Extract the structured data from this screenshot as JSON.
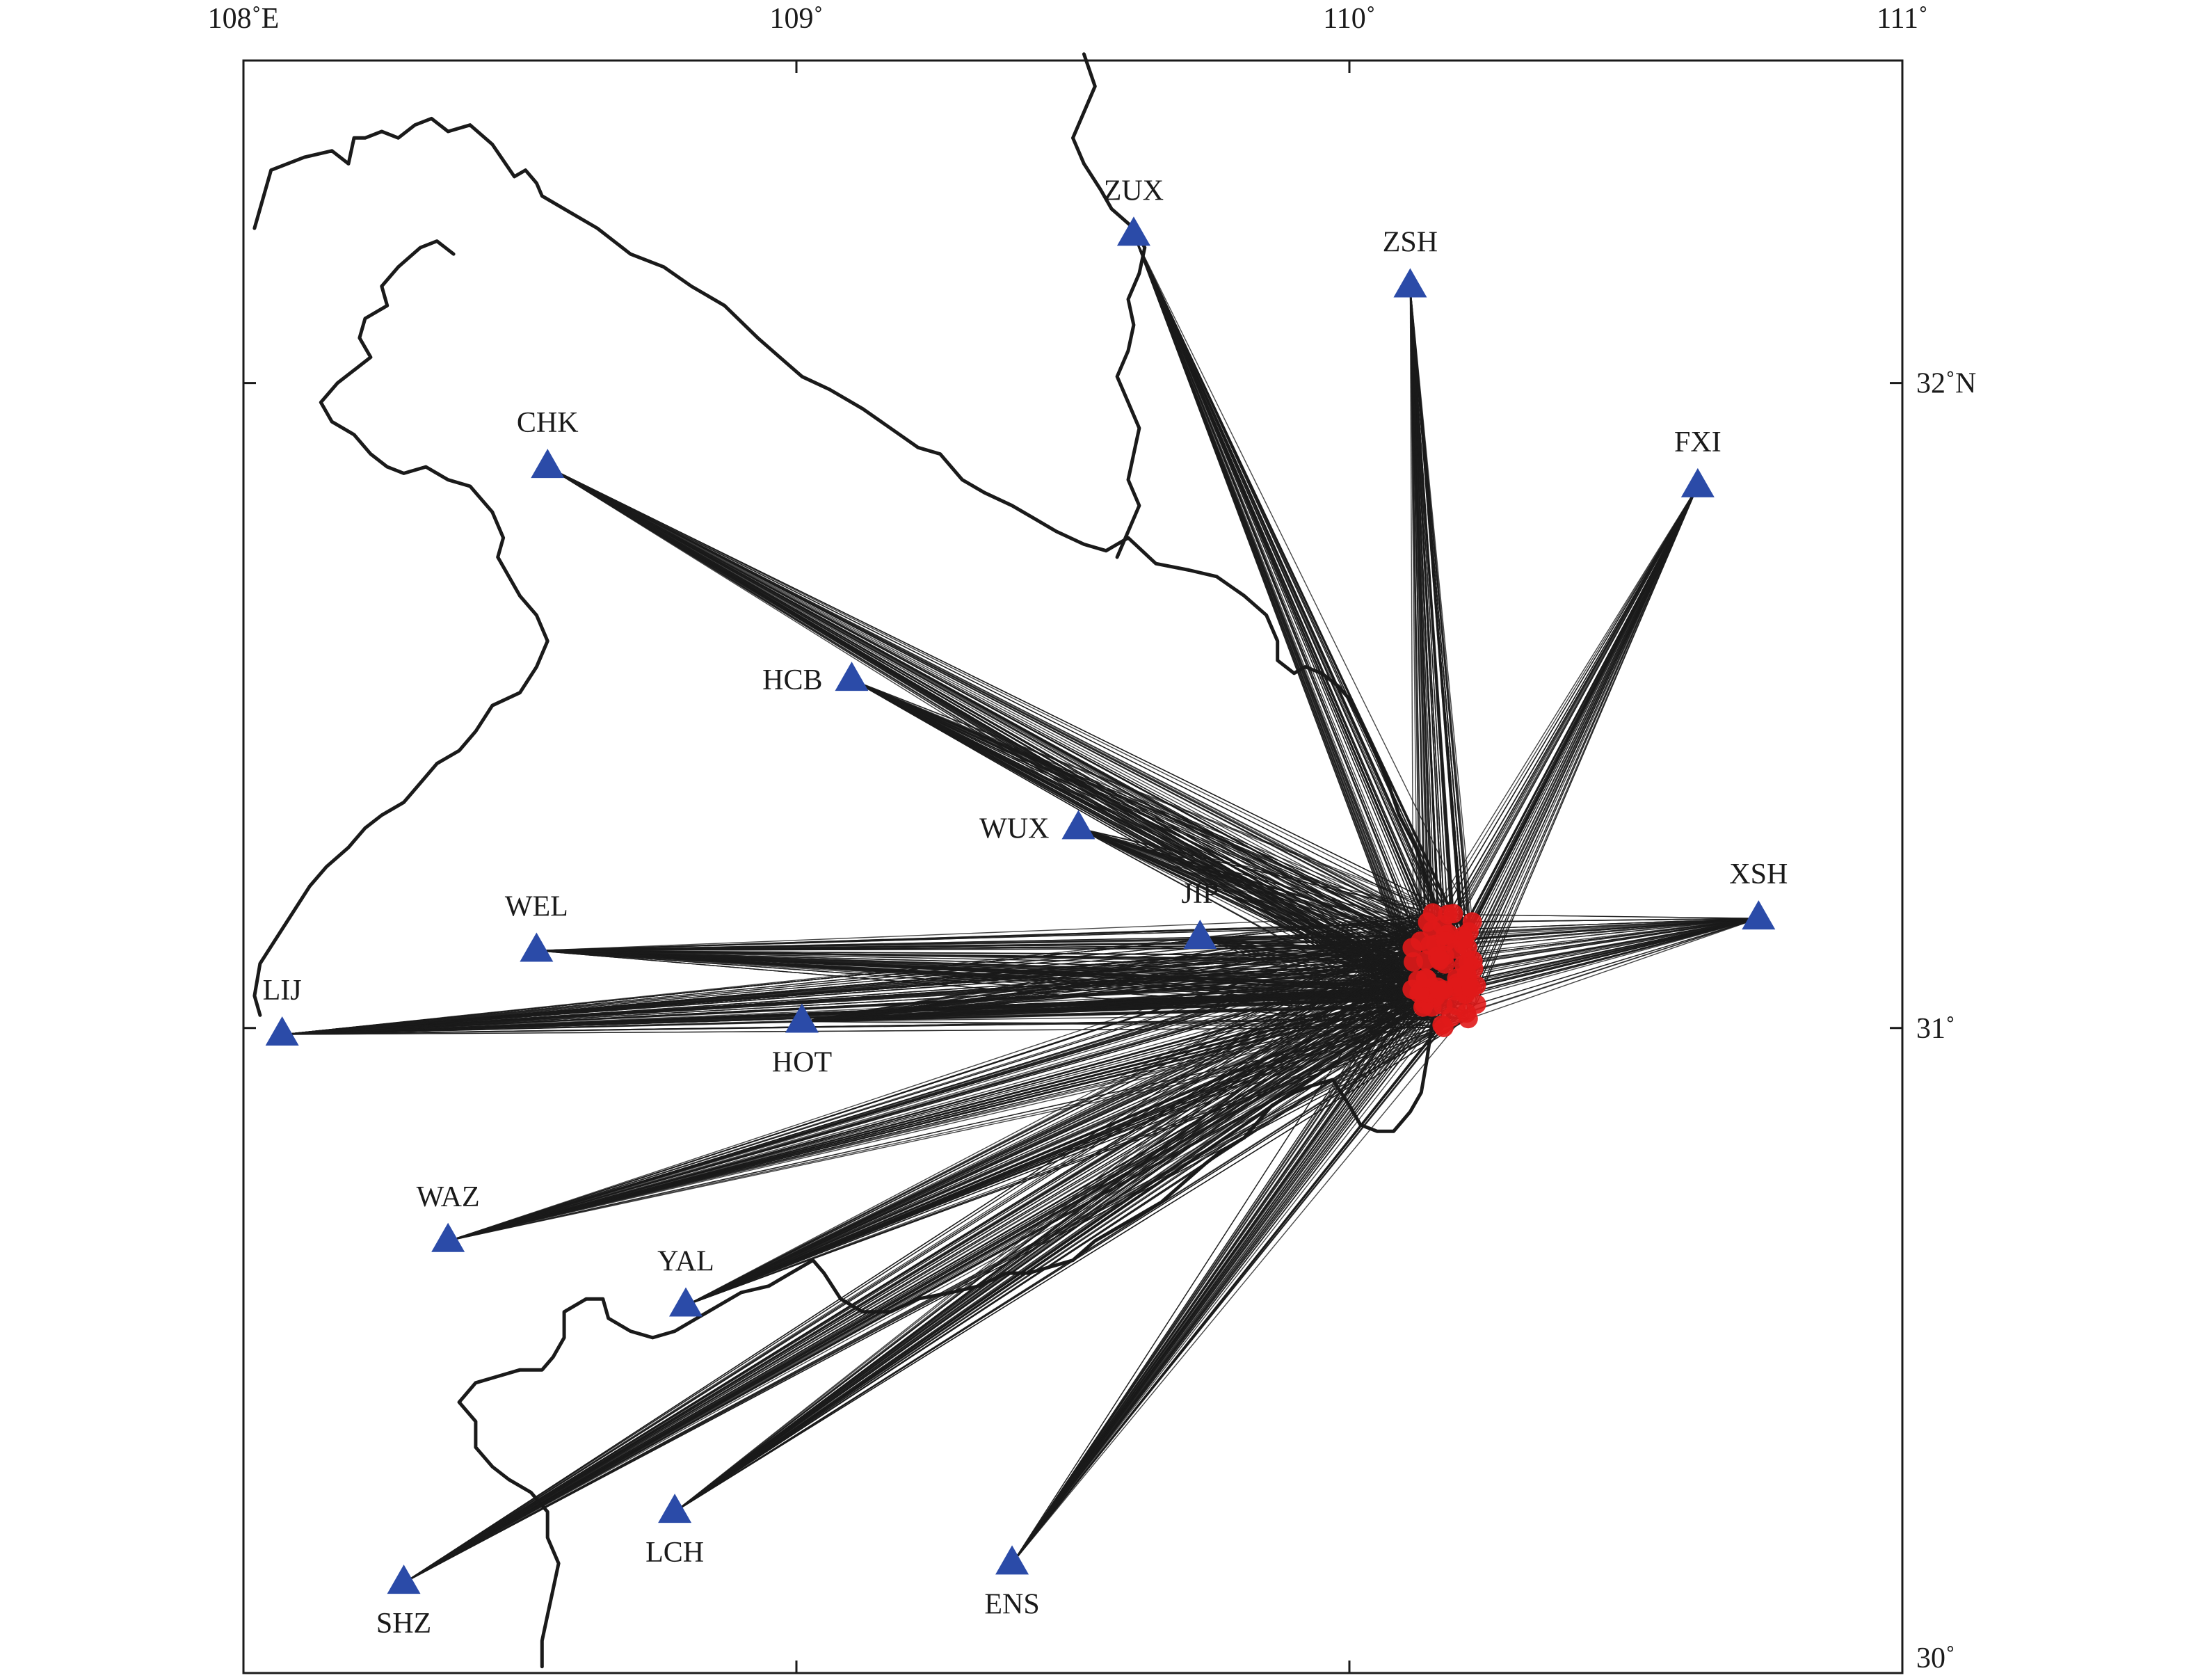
{
  "map": {
    "extent": {
      "lon": [
        108,
        111
      ],
      "lat": [
        30,
        32.5
      ]
    },
    "colors": {
      "station": "#2b4ba8",
      "event": "#e01a1a",
      "ray": "#1a1a1a",
      "border": "#1a1a1a"
    },
    "lon_ticks": [
      {
        "value": 108,
        "label": "108˚E"
      },
      {
        "value": 109,
        "label": "109˚"
      },
      {
        "value": 110,
        "label": "110˚"
      },
      {
        "value": 111,
        "label": "111˚"
      }
    ],
    "lat_ticks": [
      {
        "value": 32,
        "label": "32˚N"
      },
      {
        "value": 31,
        "label": "31˚"
      },
      {
        "value": 30,
        "label": "30˚"
      }
    ],
    "stations": [
      {
        "code": "ZUX",
        "lon": 109.61,
        "lat": 32.23,
        "rays": 90,
        "label_side": "above"
      },
      {
        "code": "ZSH",
        "lon": 110.11,
        "lat": 32.15,
        "rays": 90,
        "label_side": "above"
      },
      {
        "code": "FXI",
        "lon": 110.63,
        "lat": 31.84,
        "rays": 80,
        "label_side": "above"
      },
      {
        "code": "CHK",
        "lon": 108.55,
        "lat": 31.87,
        "rays": 90,
        "label_side": "above"
      },
      {
        "code": "HCB",
        "lon": 109.1,
        "lat": 31.54,
        "rays": 80,
        "label_side": "left"
      },
      {
        "code": "WUX",
        "lon": 109.51,
        "lat": 31.31,
        "rays": 60,
        "label_side": "left"
      },
      {
        "code": "XSH",
        "lon": 110.74,
        "lat": 31.17,
        "rays": 80,
        "label_side": "above"
      },
      {
        "code": "JIP",
        "lon": 109.73,
        "lat": 31.14,
        "rays": 30,
        "label_side": "above"
      },
      {
        "code": "WEL",
        "lon": 108.53,
        "lat": 31.12,
        "rays": 110,
        "label_side": "above"
      },
      {
        "code": "LIJ",
        "lon": 108.07,
        "lat": 30.99,
        "rays": 130,
        "label_side": "above"
      },
      {
        "code": "HOT",
        "lon": 109.01,
        "lat": 31.01,
        "rays": 90,
        "label_side": "below"
      },
      {
        "code": "WAZ",
        "lon": 108.37,
        "lat": 30.67,
        "rays": 100,
        "label_side": "above"
      },
      {
        "code": "YAL",
        "lon": 108.8,
        "lat": 30.57,
        "rays": 90,
        "label_side": "above"
      },
      {
        "code": "LCH",
        "lon": 108.78,
        "lat": 30.25,
        "rays": 80,
        "label_side": "below"
      },
      {
        "code": "SHZ",
        "lon": 108.29,
        "lat": 30.14,
        "rays": 90,
        "label_side": "below"
      },
      {
        "code": "ENS",
        "lon": 109.39,
        "lat": 30.17,
        "rays": 80,
        "label_side": "below"
      }
    ],
    "event_cluster": {
      "lon": [
        110.05,
        110.23
      ],
      "lat": [
        31.0,
        31.18
      ],
      "count": 70
    },
    "borders": [
      [
        [
          108.02,
          32.24
        ],
        [
          108.05,
          32.33
        ],
        [
          108.11,
          32.35
        ],
        [
          108.16,
          32.36
        ],
        [
          108.19,
          32.34
        ],
        [
          108.2,
          32.38
        ],
        [
          108.22,
          32.38
        ],
        [
          108.25,
          32.39
        ],
        [
          108.28,
          32.38
        ],
        [
          108.31,
          32.4
        ],
        [
          108.34,
          32.41
        ],
        [
          108.37,
          32.39
        ],
        [
          108.41,
          32.4
        ],
        [
          108.45,
          32.37
        ],
        [
          108.49,
          32.32
        ],
        [
          108.51,
          32.33
        ],
        [
          108.53,
          32.31
        ],
        [
          108.54,
          32.29
        ],
        [
          108.58,
          32.27
        ],
        [
          108.64,
          32.24
        ],
        [
          108.7,
          32.2
        ],
        [
          108.76,
          32.18
        ],
        [
          108.81,
          32.15
        ],
        [
          108.87,
          32.12
        ],
        [
          108.93,
          32.07
        ],
        [
          108.97,
          32.04
        ],
        [
          109.01,
          32.01
        ],
        [
          109.06,
          31.99
        ],
        [
          109.12,
          31.96
        ],
        [
          109.17,
          31.93
        ],
        [
          109.22,
          31.9
        ],
        [
          109.26,
          31.89
        ],
        [
          109.3,
          31.85
        ],
        [
          109.34,
          31.83
        ],
        [
          109.39,
          31.81
        ],
        [
          109.43,
          31.79
        ],
        [
          109.47,
          31.77
        ],
        [
          109.52,
          31.75
        ],
        [
          109.56,
          31.74
        ],
        [
          109.6,
          31.76
        ],
        [
          109.65,
          31.72
        ],
        [
          109.71,
          31.71
        ],
        [
          109.76,
          31.7
        ],
        [
          109.81,
          31.67
        ],
        [
          109.85,
          31.64
        ],
        [
          109.87,
          31.6
        ],
        [
          109.87,
          31.57
        ],
        [
          109.9,
          31.55
        ],
        [
          109.92,
          31.56
        ],
        [
          109.95,
          31.55
        ],
        [
          109.98,
          31.53
        ],
        [
          110.0,
          31.51
        ],
        [
          110.04,
          31.44
        ],
        [
          110.07,
          31.38
        ],
        [
          110.09,
          31.33
        ],
        [
          110.12,
          31.28
        ],
        [
          110.14,
          31.23
        ],
        [
          110.16,
          31.18
        ],
        [
          110.17,
          31.12
        ],
        [
          110.16,
          31.06
        ],
        [
          110.15,
          31.01
        ],
        [
          110.14,
          30.95
        ],
        [
          110.13,
          30.9
        ],
        [
          110.11,
          30.87
        ],
        [
          110.08,
          30.84
        ],
        [
          110.05,
          30.84
        ],
        [
          110.02,
          30.85
        ],
        [
          110.0,
          30.88
        ],
        [
          109.97,
          30.92
        ],
        [
          109.93,
          30.91
        ],
        [
          109.9,
          30.9
        ],
        [
          109.86,
          30.88
        ],
        [
          109.83,
          30.85
        ],
        [
          109.81,
          30.83
        ],
        [
          109.77,
          30.81
        ],
        [
          109.74,
          30.79
        ],
        [
          109.7,
          30.76
        ],
        [
          109.66,
          30.73
        ],
        [
          109.62,
          30.71
        ],
        [
          109.58,
          30.69
        ],
        [
          109.54,
          30.67
        ],
        [
          109.5,
          30.64
        ],
        [
          109.46,
          30.63
        ],
        [
          109.42,
          30.62
        ],
        [
          109.38,
          30.62
        ],
        [
          109.33,
          30.6
        ],
        [
          109.28,
          30.59
        ],
        [
          109.22,
          30.58
        ],
        [
          109.17,
          30.56
        ],
        [
          109.12,
          30.56
        ],
        [
          109.08,
          30.58
        ],
        [
          109.05,
          30.62
        ],
        [
          109.03,
          30.64
        ],
        [
          108.99,
          30.62
        ],
        [
          108.95,
          30.6
        ],
        [
          108.9,
          30.59
        ],
        [
          108.86,
          30.57
        ],
        [
          108.82,
          30.55
        ],
        [
          108.78,
          30.53
        ],
        [
          108.74,
          30.52
        ],
        [
          108.7,
          30.53
        ],
        [
          108.66,
          30.55
        ],
        [
          108.65,
          30.58
        ],
        [
          108.62,
          30.58
        ],
        [
          108.58,
          30.56
        ],
        [
          108.58,
          30.52
        ],
        [
          108.56,
          30.49
        ],
        [
          108.54,
          30.47
        ],
        [
          108.5,
          30.47
        ],
        [
          108.46,
          30.46
        ],
        [
          108.42,
          30.45
        ],
        [
          108.39,
          30.42
        ],
        [
          108.42,
          30.39
        ],
        [
          108.42,
          30.35
        ],
        [
          108.45,
          30.32
        ],
        [
          108.48,
          30.3
        ],
        [
          108.52,
          30.28
        ],
        [
          108.55,
          30.25
        ],
        [
          108.55,
          30.21
        ],
        [
          108.57,
          30.17
        ],
        [
          108.56,
          30.13
        ],
        [
          108.55,
          30.09
        ],
        [
          108.54,
          30.05
        ],
        [
          108.54,
          30.01
        ]
      ],
      [
        [
          108.38,
          32.2
        ],
        [
          108.35,
          32.22
        ],
        [
          108.32,
          32.21
        ],
        [
          108.28,
          32.18
        ],
        [
          108.25,
          32.15
        ],
        [
          108.26,
          32.12
        ],
        [
          108.22,
          32.1
        ],
        [
          108.21,
          32.07
        ],
        [
          108.23,
          32.04
        ],
        [
          108.2,
          32.02
        ],
        [
          108.17,
          32.0
        ],
        [
          108.14,
          31.97
        ],
        [
          108.16,
          31.94
        ],
        [
          108.2,
          31.92
        ],
        [
          108.23,
          31.89
        ],
        [
          108.26,
          31.87
        ],
        [
          108.29,
          31.86
        ],
        [
          108.33,
          31.87
        ],
        [
          108.37,
          31.85
        ],
        [
          108.41,
          31.84
        ],
        [
          108.45,
          31.8
        ],
        [
          108.47,
          31.76
        ],
        [
          108.46,
          31.73
        ],
        [
          108.48,
          31.7
        ],
        [
          108.5,
          31.67
        ],
        [
          108.53,
          31.64
        ],
        [
          108.55,
          31.6
        ],
        [
          108.53,
          31.56
        ],
        [
          108.5,
          31.52
        ],
        [
          108.45,
          31.5
        ],
        [
          108.42,
          31.46
        ],
        [
          108.39,
          31.43
        ],
        [
          108.35,
          31.41
        ],
        [
          108.32,
          31.38
        ],
        [
          108.29,
          31.35
        ],
        [
          108.25,
          31.33
        ],
        [
          108.22,
          31.31
        ],
        [
          108.19,
          31.28
        ],
        [
          108.15,
          31.25
        ],
        [
          108.12,
          31.22
        ],
        [
          108.09,
          31.18
        ],
        [
          108.06,
          31.14
        ],
        [
          108.03,
          31.1
        ],
        [
          108.02,
          31.05
        ],
        [
          108.03,
          31.02
        ]
      ],
      [
        [
          109.52,
          32.51
        ],
        [
          109.54,
          32.46
        ],
        [
          109.52,
          32.42
        ],
        [
          109.5,
          32.38
        ],
        [
          109.52,
          32.34
        ],
        [
          109.55,
          32.3
        ],
        [
          109.57,
          32.27
        ],
        [
          109.61,
          32.24
        ],
        [
          109.63,
          32.21
        ],
        [
          109.62,
          32.17
        ],
        [
          109.6,
          32.13
        ],
        [
          109.61,
          32.09
        ],
        [
          109.6,
          32.05
        ],
        [
          109.58,
          32.01
        ],
        [
          109.6,
          31.97
        ],
        [
          109.62,
          31.93
        ],
        [
          109.61,
          31.89
        ],
        [
          109.6,
          31.85
        ],
        [
          109.62,
          31.81
        ],
        [
          109.6,
          31.77
        ],
        [
          109.58,
          31.73
        ]
      ]
    ]
  }
}
